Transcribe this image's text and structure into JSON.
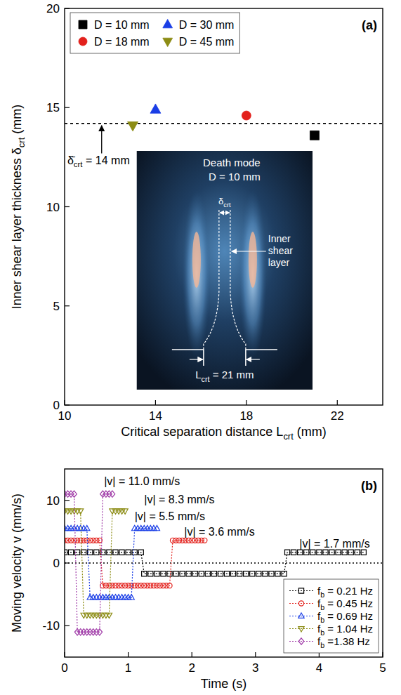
{
  "chart_data": [
    {
      "type": "scatter",
      "label": "(a)",
      "x_label": "Critical separation distance Lcrt (mm)",
      "y_label": "Inner shear layer thickness δcrt (mm)",
      "xlim": [
        10,
        24
      ],
      "xticks": [
        10,
        14,
        18,
        22
      ],
      "ylim": [
        0,
        20
      ],
      "yticks": [
        0,
        5,
        10,
        15,
        20
      ],
      "legend": "upper left",
      "series": [
        {
          "name": "D = 10 mm",
          "color": "#000000",
          "marker": "square",
          "x": [
            21
          ],
          "values": [
            13.6
          ]
        },
        {
          "name": "D = 18 mm",
          "color": "#e3211c",
          "marker": "circle",
          "x": [
            18
          ],
          "values": [
            14.6
          ]
        },
        {
          "name": "D = 30 mm",
          "color": "#1a3ee6",
          "marker": "triangle-up",
          "x": [
            14
          ],
          "values": [
            14.9
          ]
        },
        {
          "name": "D = 45 mm",
          "color": "#8c8c14",
          "marker": "triangle-down",
          "x": [
            13
          ],
          "values": [
            14.1
          ]
        }
      ],
      "reference_line": {
        "value": 14.2,
        "line_style": "dashed",
        "label": "δ̄crt = 14 mm",
        "label_x": 10.12,
        "label_y": 12.35
      },
      "inset": {
        "title": "Death mode",
        "subtitle": "D = 10 mm",
        "width_label": "δcrt",
        "layer_label": "Inner shear layer",
        "separation_label": "Lcrt = 21 mm"
      }
    },
    {
      "type": "line",
      "label": "(b)",
      "x_label": "Time (s)",
      "y_label": "Moving velocity v (mm/s)",
      "xlim": [
        0,
        5
      ],
      "xticks": [
        0,
        1,
        2,
        3,
        4,
        5
      ],
      "ylim": [
        -15,
        15
      ],
      "yticks": [
        -10,
        0,
        10
      ],
      "legend": "lower right",
      "reference_line": {
        "value": 0,
        "line_style": "dotted"
      },
      "series": [
        {
          "name": "fb = 0.21 Hz",
          "color": "#000000",
          "marker": "open-square",
          "line_style": "dotted",
          "x": [
            0,
            0.1,
            0.2,
            0.3,
            0.4,
            0.5,
            0.6,
            0.7,
            0.8,
            0.9,
            1,
            1.1,
            1.2,
            1.25,
            1.35,
            1.45,
            1.55,
            1.65,
            1.75,
            1.85,
            1.95,
            2.05,
            2.15,
            2.25,
            2.35,
            2.45,
            2.55,
            2.65,
            2.75,
            2.85,
            2.95,
            3.05,
            3.15,
            3.25,
            3.35,
            3.45,
            3.5,
            3.6,
            3.7,
            3.8,
            3.9,
            4,
            4.1,
            4.2,
            4.3,
            4.4,
            4.5,
            4.6,
            4.7
          ],
          "values": [
            1.7,
            1.7,
            1.7,
            1.7,
            1.7,
            1.7,
            1.7,
            1.7,
            1.7,
            1.7,
            1.7,
            1.7,
            1.7,
            -1.7,
            -1.7,
            -1.7,
            -1.7,
            -1.7,
            -1.7,
            -1.7,
            -1.7,
            -1.7,
            -1.7,
            -1.7,
            -1.7,
            -1.7,
            -1.7,
            -1.7,
            -1.7,
            -1.7,
            -1.7,
            -1.7,
            -1.7,
            -1.7,
            -1.7,
            -1.7,
            1.7,
            1.7,
            1.7,
            1.7,
            1.7,
            1.7,
            1.7,
            1.7,
            1.7,
            1.7,
            1.7,
            1.7,
            1.7
          ]
        },
        {
          "name": "fb = 0.45 Hz",
          "color": "#e3211c",
          "marker": "open-circle",
          "line_style": "dotted",
          "x": [
            0,
            0.05,
            0.1,
            0.15,
            0.2,
            0.25,
            0.3,
            0.35,
            0.4,
            0.45,
            0.5,
            0.55,
            0.6,
            0.65,
            0.7,
            0.75,
            0.8,
            0.85,
            0.9,
            0.95,
            1,
            1.05,
            1.1,
            1.15,
            1.2,
            1.25,
            1.3,
            1.35,
            1.4,
            1.45,
            1.5,
            1.55,
            1.6,
            1.65,
            1.7,
            1.75,
            1.8,
            1.85,
            1.9,
            1.95,
            2,
            2.05,
            2.1,
            2.15,
            2.2
          ],
          "values": [
            3.6,
            3.6,
            3.6,
            3.6,
            3.6,
            3.6,
            3.6,
            3.6,
            3.6,
            3.6,
            3.6,
            3.6,
            -3.6,
            -3.6,
            -3.6,
            -3.6,
            -3.6,
            -3.6,
            -3.6,
            -3.6,
            -3.6,
            -3.6,
            -3.6,
            -3.6,
            -3.6,
            -3.6,
            -3.6,
            -3.6,
            -3.6,
            -3.6,
            -3.6,
            -3.6,
            -3.6,
            -3.6,
            3.6,
            3.6,
            3.6,
            3.6,
            3.6,
            3.6,
            3.6,
            3.6,
            3.6,
            3.6,
            3.6
          ]
        },
        {
          "name": "fb = 0.69 Hz",
          "color": "#1a3ee6",
          "marker": "open-triangle-up",
          "line_style": "dotted",
          "x": [
            0,
            0.05,
            0.1,
            0.15,
            0.2,
            0.25,
            0.3,
            0.35,
            0.4,
            0.45,
            0.5,
            0.55,
            0.6,
            0.65,
            0.7,
            0.75,
            0.8,
            0.85,
            0.9,
            0.95,
            1,
            1.05,
            1.1,
            1.15,
            1.2,
            1.25,
            1.3,
            1.35,
            1.4,
            1.45
          ],
          "values": [
            5.5,
            5.5,
            5.5,
            5.5,
            5.5,
            5.5,
            5.5,
            5.5,
            -5.5,
            -5.5,
            -5.5,
            -5.5,
            -5.5,
            -5.5,
            -5.5,
            -5.5,
            -5.5,
            -5.5,
            -5.5,
            -5.5,
            -5.5,
            -5.5,
            5.5,
            5.5,
            5.5,
            5.5,
            5.5,
            5.5,
            5.5,
            5.5
          ]
        },
        {
          "name": "fb = 1.04 Hz",
          "color": "#8c8c14",
          "marker": "open-triangle-down",
          "line_style": "dotted",
          "x": [
            0,
            0.05,
            0.1,
            0.15,
            0.2,
            0.25,
            0.3,
            0.35,
            0.4,
            0.45,
            0.5,
            0.55,
            0.6,
            0.65,
            0.7,
            0.75,
            0.8,
            0.85,
            0.9,
            0.95
          ],
          "values": [
            8.3,
            8.3,
            8.3,
            8.3,
            8.3,
            8.3,
            -8.3,
            -8.3,
            -8.3,
            -8.3,
            -8.3,
            -8.3,
            -8.3,
            -8.3,
            -8.3,
            8.3,
            8.3,
            8.3,
            8.3,
            8.3
          ]
        },
        {
          "name": "fb =1.38 Hz",
          "color": "#a03ca8",
          "marker": "open-diamond",
          "line_style": "dotted",
          "x": [
            0,
            0.05,
            0.1,
            0.15,
            0.2,
            0.25,
            0.3,
            0.35,
            0.4,
            0.45,
            0.5,
            0.55,
            0.6,
            0.65,
            0.7,
            0.75
          ],
          "values": [
            11,
            11,
            11,
            11,
            -11,
            -11,
            -11,
            -11,
            -11,
            -11,
            -11,
            -11,
            11,
            11,
            11,
            11
          ]
        }
      ],
      "annotations": [
        {
          "text": "|v| = 11.0 mm/s",
          "x": 0.62,
          "y": 13.0
        },
        {
          "text": "|v| = 8.3 mm/s",
          "x": 1.25,
          "y": 10.1
        },
        {
          "text": "|v| = 5.5 mm/s",
          "x": 1.1,
          "y": 7.4
        },
        {
          "text": "|v| = 3.6 mm/s",
          "x": 1.88,
          "y": 5.0
        },
        {
          "text": "|v| = 1.7 mm/s",
          "x": 3.69,
          "y": 3.1
        }
      ]
    }
  ]
}
